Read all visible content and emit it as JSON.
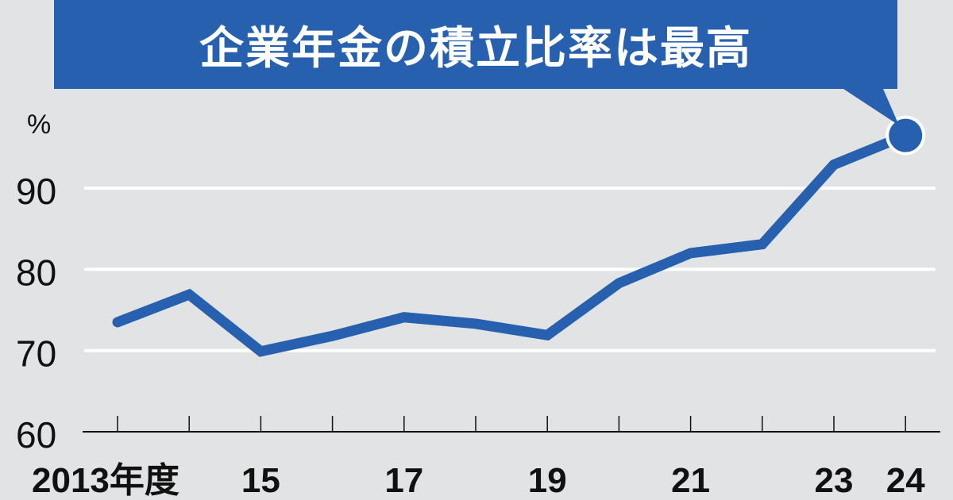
{
  "chart_data": {
    "type": "line",
    "title": "企業年金の積立比率は最高",
    "unit": "%",
    "x": [
      2013,
      2014,
      2015,
      2016,
      2017,
      2018,
      2019,
      2020,
      2021,
      2022,
      2023,
      2024
    ],
    "x_tick_labels": [
      {
        "x": 2013,
        "label": "2013年度"
      },
      {
        "x": 2015,
        "label": "15"
      },
      {
        "x": 2017,
        "label": "17"
      },
      {
        "x": 2019,
        "label": "19"
      },
      {
        "x": 2021,
        "label": "21"
      },
      {
        "x": 2023,
        "label": "23"
      },
      {
        "x": 2024,
        "label": "24"
      }
    ],
    "series": [
      {
        "values": [
          73.5,
          76.9,
          69.9,
          71.8,
          74.1,
          73.3,
          71.9,
          78.3,
          82.0,
          83.1,
          92.9,
          96.5
        ]
      }
    ],
    "ylim": [
      60,
      100
    ],
    "y_ticks": [
      60,
      70,
      80,
      90
    ],
    "grid": true,
    "highlight_last_point": true,
    "colors": {
      "line": "#2660ae",
      "background": "#e1e3e5",
      "grid": "#ffffff"
    }
  }
}
